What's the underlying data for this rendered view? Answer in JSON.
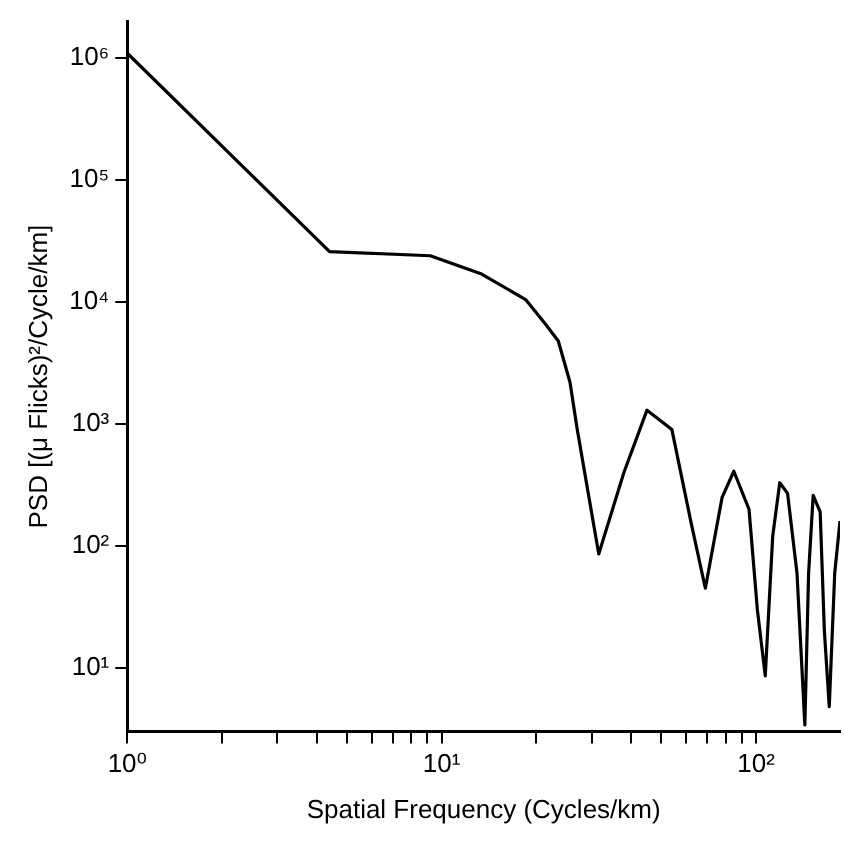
{
  "chart_data": {
    "type": "line",
    "xlabel": "Spatial Frequency (Cycles/km)",
    "ylabel": "PSD [(μ Flicks)²/Cycle/km]",
    "log": "xy",
    "grid": false,
    "legend": false,
    "marker": "none",
    "line_style": "solid",
    "xlim": [
      1,
      185
    ],
    "ylim": [
      3,
      2000000
    ],
    "xticks": [
      {
        "value": 1,
        "label": "10⁰"
      },
      {
        "value": 2,
        "label": null
      },
      {
        "value": 3,
        "label": null
      },
      {
        "value": 4,
        "label": null
      },
      {
        "value": 5,
        "label": null
      },
      {
        "value": 6,
        "label": null
      },
      {
        "value": 7,
        "label": null
      },
      {
        "value": 8,
        "label": null
      },
      {
        "value": 9,
        "label": null
      },
      {
        "value": 10,
        "label": "10¹"
      },
      {
        "value": 20,
        "label": null
      },
      {
        "value": 30,
        "label": null
      },
      {
        "value": 40,
        "label": null
      },
      {
        "value": 50,
        "label": null
      },
      {
        "value": 60,
        "label": null
      },
      {
        "value": 70,
        "label": null
      },
      {
        "value": 80,
        "label": null
      },
      {
        "value": 90,
        "label": null
      },
      {
        "value": 100,
        "label": "10²"
      }
    ],
    "yticks": [
      {
        "value": 10,
        "label": "10¹"
      },
      {
        "value": 100,
        "label": "10²"
      },
      {
        "value": 1000,
        "label": "10³"
      },
      {
        "value": 10000,
        "label": "10⁴"
      },
      {
        "value": 100000,
        "label": "10⁵"
      },
      {
        "value": 1000000,
        "label": "10⁶"
      }
    ],
    "series": [
      {
        "color": "#000000",
        "x": [
          1,
          4.4,
          9.2,
          13.4,
          18.5,
          21.5,
          23.5,
          25.6,
          27,
          31.6,
          38,
          45,
          54,
          62,
          69,
          78,
          85,
          95,
          101,
          107,
          113,
          119,
          126,
          135,
          143,
          147,
          152,
          160,
          165,
          171,
          178,
          185
        ],
        "values": [
          1100000,
          26000,
          24000,
          17000,
          10500,
          6500,
          4800,
          2200,
          900,
          86,
          400,
          1300,
          900,
          160,
          45,
          250,
          410,
          200,
          30,
          8.6,
          120,
          330,
          270,
          60,
          3.4,
          60,
          260,
          190,
          20,
          4.8,
          60,
          160
        ]
      }
    ]
  }
}
